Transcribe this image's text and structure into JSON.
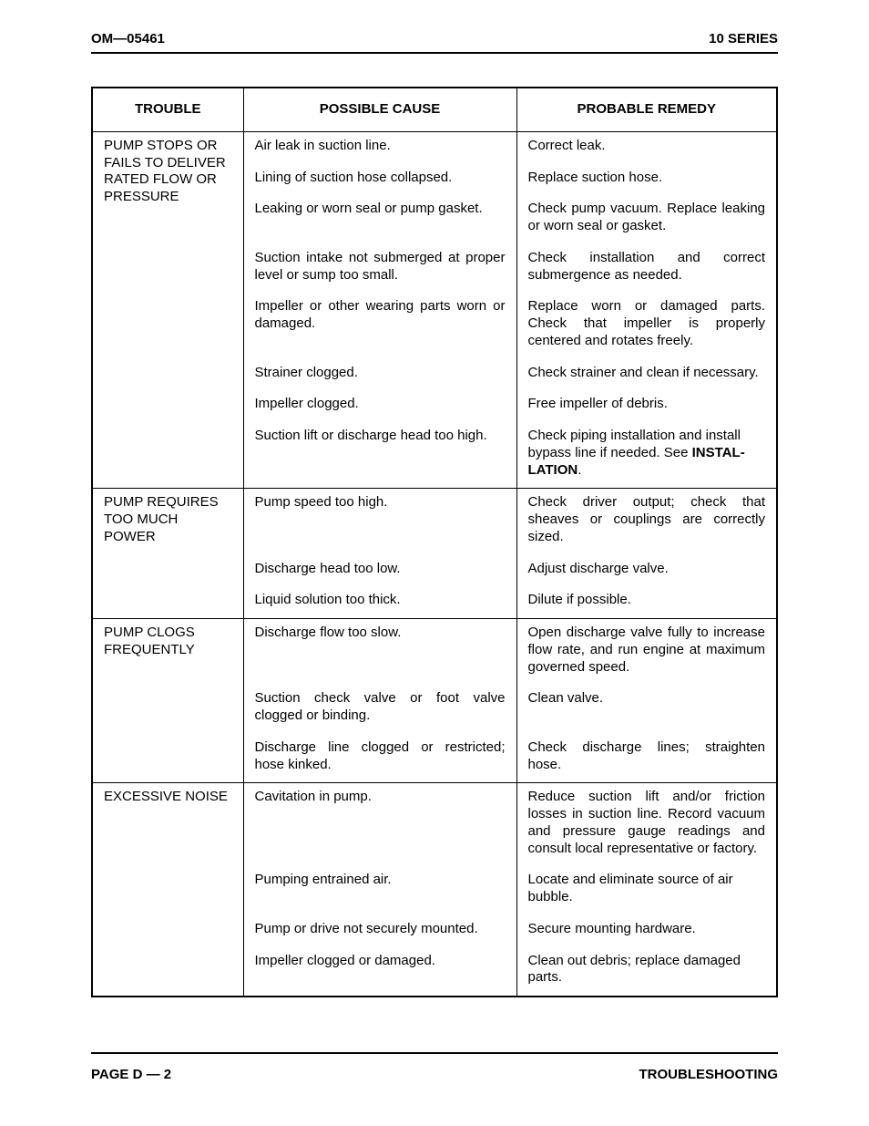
{
  "header": {
    "left": "OM—05461",
    "right": "10 SERIES"
  },
  "footer": {
    "left": "PAGE D — 2",
    "right": "TROUBLESHOOTING"
  },
  "columns": {
    "trouble": "TROUBLE",
    "cause": "POSSIBLE CAUSE",
    "remedy": "PROBABLE REMEDY"
  },
  "style": {
    "page_bg": "#ffffff",
    "text_color": "#000000",
    "border_color": "#000000",
    "border_width_outer": 2,
    "border_width_inner": 1.5,
    "font_size": 15,
    "header_weight": 700
  },
  "groups": [
    {
      "trouble": "PUMP STOPS OR FAILS TO DELIVER RATED FLOW OR PRESSURE",
      "rows": [
        {
          "cause": "Air leak in suction line.",
          "remedy": "Correct leak."
        },
        {
          "cause": "Lining of suction hose collapsed.",
          "remedy": "Replace suction hose."
        },
        {
          "cause": "Leaking or worn seal or pump gasket.",
          "remedy": "Check pump vacuum. Replace leaking or worn seal or gasket.",
          "remedy_justify": true
        },
        {
          "cause": "Suction intake not submerged at proper level or sump too small.",
          "cause_justify": true,
          "remedy": "Check installation and correct submergence as needed.",
          "remedy_justify": true
        },
        {
          "cause": "Impeller or other wearing parts worn or damaged.",
          "cause_justify": true,
          "remedy": "Replace worn or damaged parts. Check that impeller is properly centered and rotates freely.",
          "remedy_justify": true
        },
        {
          "cause": "Strainer clogged.",
          "remedy": "Check strainer and clean if neces­sary."
        },
        {
          "cause": "Impeller clogged.",
          "remedy": "Free impeller of debris."
        },
        {
          "cause": "Suction lift or discharge head too high.",
          "remedy_html": "Check piping installation and install bypass line if needed. See <span class=\"bold-inline\">INSTAL­LATION</span>."
        }
      ]
    },
    {
      "trouble": "PUMP REQUIRES TOO MUCH POWER",
      "rows": [
        {
          "cause": "Pump speed too high.",
          "remedy": "Check driver output; check that sheaves or couplings are correctly sized.",
          "remedy_justify": true
        },
        {
          "cause": "Discharge head too low.",
          "remedy": "Adjust discharge valve."
        },
        {
          "cause": "Liquid solution too thick.",
          "remedy": "Dilute if possible."
        }
      ]
    },
    {
      "trouble": "PUMP CLOGS FREQUENTLY",
      "rows": [
        {
          "cause": "Discharge flow too slow.",
          "remedy": "Open discharge valve fully to in­crease flow rate, and run engine at maximum governed speed.",
          "remedy_justify": true
        },
        {
          "cause": "Suction check valve or foot valve clogged or binding.",
          "cause_justify": true,
          "remedy": "Clean valve."
        },
        {
          "cause": "Discharge line clogged or restricted; hose kinked.",
          "cause_justify": true,
          "remedy": "Check discharge lines; straighten hose.",
          "remedy_justify": true
        }
      ]
    },
    {
      "trouble": "EXCESSIVE NOISE",
      "rows": [
        {
          "cause": "Cavitation in pump.",
          "remedy": "Reduce suction lift and/or friction losses in suction line. Record vac­uum and pressure gauge readings and consult local representative or factory.",
          "remedy_justify": true
        },
        {
          "cause": "Pumping entrained air.",
          "remedy": "Locate and eliminate source of air bubble."
        },
        {
          "cause": "Pump or drive not securely mounted.",
          "remedy": "Secure mounting hardware."
        },
        {
          "cause": "Impeller clogged or damaged.",
          "remedy": "Clean out debris; replace damaged parts."
        }
      ]
    }
  ]
}
